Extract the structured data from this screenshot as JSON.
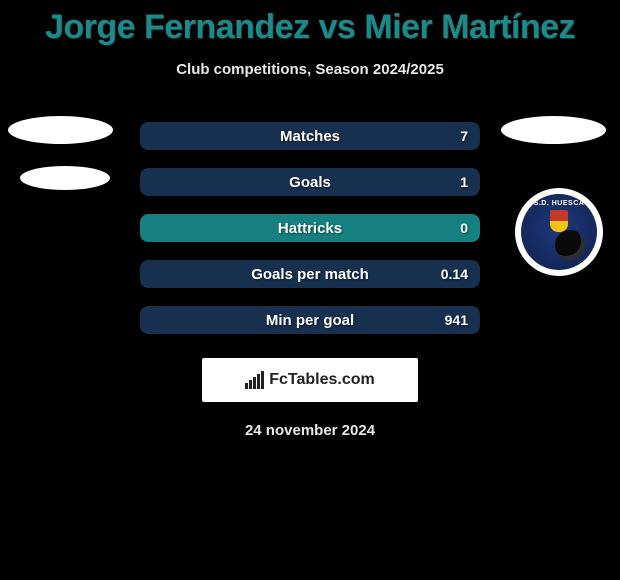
{
  "title": "Jorge Fernandez vs Mier Martínez",
  "subtitle": "Club competitions, Season 2024/2025",
  "colors": {
    "title_color": "#1a8a8a",
    "text_color": "#e8e8e8",
    "bar_teal": "#168080",
    "bar_navy": "#183050",
    "background": "#000000"
  },
  "stats": [
    {
      "label": "Matches",
      "right_value": "7",
      "left_fill_pct": 0,
      "bar_color_full": "#183050"
    },
    {
      "label": "Goals",
      "right_value": "1",
      "left_fill_pct": 0,
      "bar_color_full": "#183050"
    },
    {
      "label": "Hattricks",
      "right_value": "0",
      "left_fill_pct": 0,
      "bar_color_full": "#168080"
    },
    {
      "label": "Goals per match",
      "right_value": "0.14",
      "left_fill_pct": 0,
      "bar_color_full": "#183050"
    },
    {
      "label": "Min per goal",
      "right_value": "941",
      "left_fill_pct": 0,
      "bar_color_full": "#183050"
    }
  ],
  "footer": {
    "brand": "FcTables.com"
  },
  "date": "24 november 2024",
  "crest": {
    "text_top": "S.D. HUESCA"
  }
}
